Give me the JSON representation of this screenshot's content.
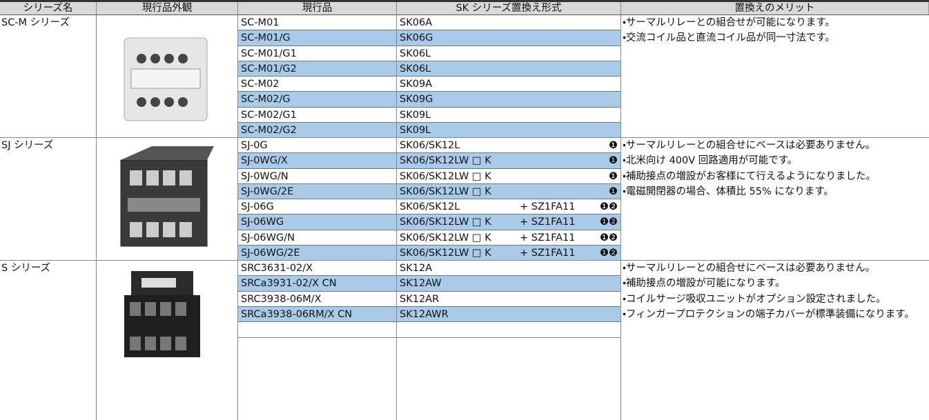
{
  "header": [
    "シリーズ名",
    "現行品外観",
    "現行品",
    "SK シリーズ置換え形式",
    "置換えのメリット"
  ],
  "sections": [
    {
      "series": "SC-M シリーズ",
      "rows": [
        {
          "current": "SC-M01",
          "replacement": "SK06A"
        },
        {
          "current": "SC-M01/G",
          "replacement": "SK06G"
        },
        {
          "current": "SC-M01/G1",
          "replacement": "SK06L"
        },
        {
          "current": "SC-M01/G2",
          "replacement": "SK06L"
        },
        {
          "current": "SC-M02",
          "replacement": "SK09A"
        },
        {
          "current": "SC-M02/G",
          "replacement": "SK09G"
        },
        {
          "current": "SC-M02/G1",
          "replacement": "SK09L"
        },
        {
          "current": "SC-M02/G2",
          "replacement": "SK09L"
        }
      ],
      "merits": [
        "・サーマルリレーとの組合せが可能になります。",
        "・交流コイル品と直流コイル品が同一寸法です。"
      ]
    },
    {
      "series": "SJ シリーズ",
      "rows": [
        {
          "current": "SJ-0G",
          "replacement": "SK06/SK12L",
          "note": "❶"
        },
        {
          "current": "SJ-0WG/X",
          "replacement": "SK06/SK12LW □ K",
          "note": "❶"
        },
        {
          "current": "SJ-0WG/N",
          "replacement": "SK06/SK12LW □ K",
          "note": "❶"
        },
        {
          "current": "SJ-0WG/2E",
          "replacement": "SK06/SK12LW □ K",
          "note": "❶"
        },
        {
          "current": "SJ-06G",
          "replacement": "SK06/SK12L",
          "option": "+ SZ1FA11",
          "note": "❶❷"
        },
        {
          "current": "SJ-06WG",
          "replacement": "SK06/SK12LW □ K",
          "option": "+ SZ1FA11",
          "note": "❶❷"
        },
        {
          "current": "SJ-06WG/N",
          "replacement": "SK06/SK12LW □ K",
          "option": "+ SZ1FA11",
          "note": "❶❷"
        },
        {
          "current": "SJ-06WG/2E",
          "replacement": "SK06/SK12LW □ K",
          "option": "+ SZ1FA11",
          "note": "❶❷"
        }
      ],
      "merits": [
        "・サーマルリレーとの組合せにベースは必要ありません。",
        "・北米向け 400V 回路適用が可能です。",
        "・補助接点の増設がお客様にて行えるようになりました。",
        "・電磁開閉器の場合、体積比 55% になります。"
      ]
    },
    {
      "series": "S シリーズ",
      "rows": [
        {
          "current": "SRC3631-02/X",
          "replacement": "SK12A"
        },
        {
          "current": "SRCa3931-02/X CN",
          "replacement": "SK12AW"
        },
        {
          "current": "SRC3938-06M/X",
          "replacement": "SK12AR"
        },
        {
          "current": "SRCa3938-06RM/X CN",
          "replacement": "SK12AWR"
        }
      ],
      "merits": [
        "・サーマルリレーとの組合せにベースは必要ありません。",
        "・補助接点の増設が可能になります。",
        "・コイルサージ吸収ユニットがオプション設定されました。",
        "・フィンガープロテクションの端子カバーが標準装備になります。"
      ]
    }
  ]
}
